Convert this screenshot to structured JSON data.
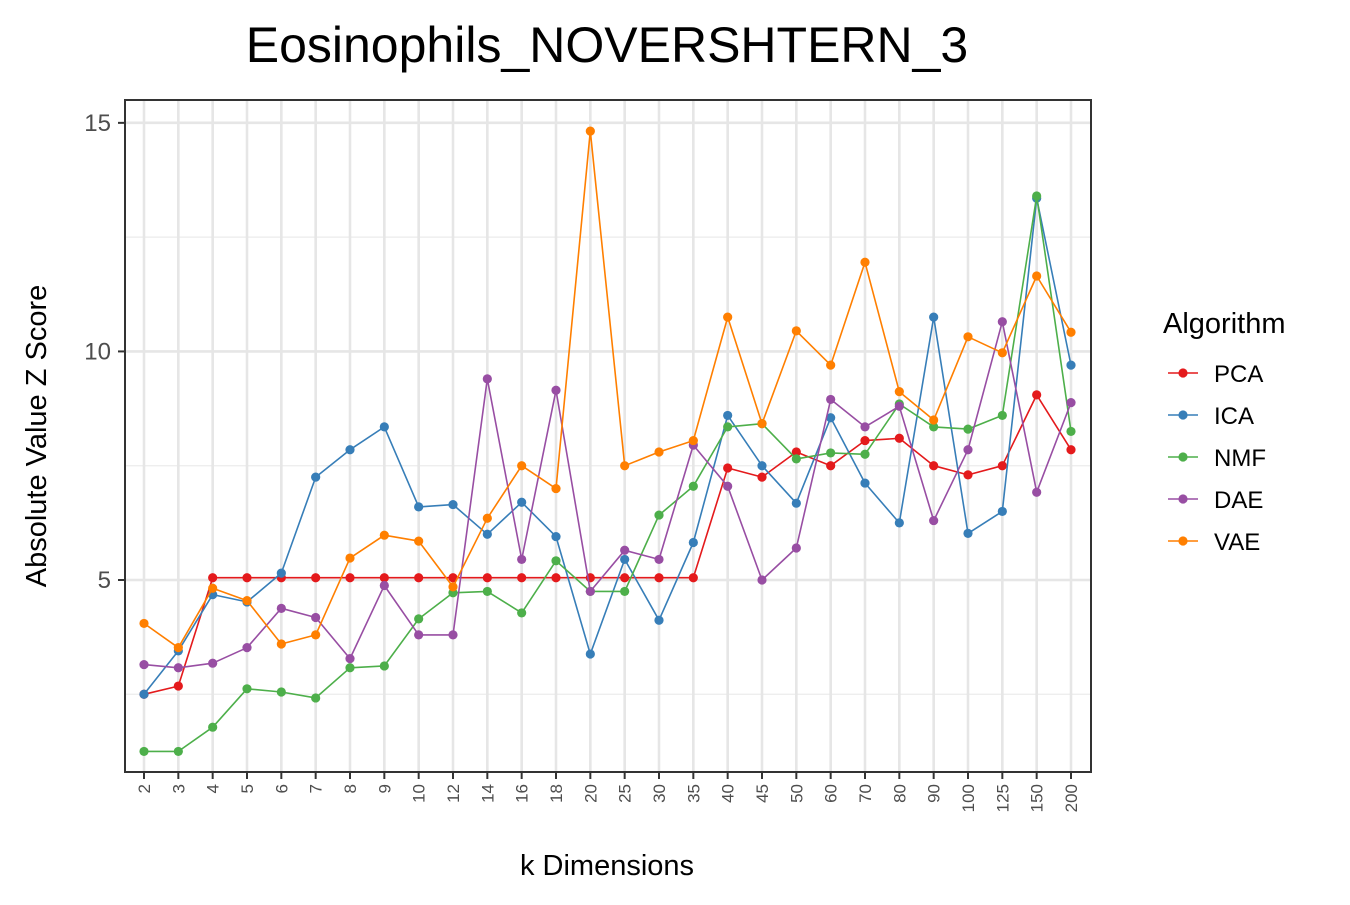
{
  "chart_data": {
    "type": "line",
    "title": "Eosinophils_NOVERSHTERN_3",
    "xlabel": "k Dimensions",
    "ylabel": "Absolute Value Z Score",
    "ylim": [
      0.8,
      15.5
    ],
    "y_ticks": [
      5,
      10,
      15
    ],
    "y_tick_labels": [
      "5",
      "10",
      "15"
    ],
    "grid": true,
    "categories": [
      "2",
      "3",
      "4",
      "5",
      "6",
      "7",
      "8",
      "9",
      "10",
      "12",
      "14",
      "16",
      "18",
      "20",
      "25",
      "30",
      "35",
      "40",
      "45",
      "50",
      "60",
      "70",
      "80",
      "90",
      "100",
      "125",
      "150",
      "200"
    ],
    "legend": {
      "title": "Algorithm",
      "position": "right"
    },
    "series": [
      {
        "name": "PCA",
        "color": "#E41A1C",
        "values": [
          2.5,
          2.68,
          5.05,
          5.05,
          5.05,
          5.05,
          5.05,
          5.05,
          5.05,
          5.05,
          5.05,
          5.05,
          5.05,
          5.05,
          5.05,
          5.05,
          5.05,
          7.45,
          7.25,
          7.8,
          7.5,
          8.05,
          8.1,
          7.5,
          7.3,
          7.5,
          9.05,
          7.85
        ]
      },
      {
        "name": "ICA",
        "color": "#377EB8",
        "values": [
          2.5,
          3.45,
          4.68,
          4.52,
          5.15,
          7.25,
          7.85,
          8.35,
          6.6,
          6.65,
          6.0,
          6.7,
          5.95,
          3.38,
          5.45,
          4.12,
          5.82,
          8.6,
          7.5,
          6.68,
          8.55,
          7.12,
          6.25,
          10.75,
          6.02,
          6.5,
          13.35,
          9.7
        ]
      },
      {
        "name": "NMF",
        "color": "#4DAF4A",
        "values": [
          1.25,
          1.25,
          1.78,
          2.62,
          2.55,
          2.42,
          3.08,
          3.12,
          4.15,
          4.72,
          4.75,
          4.28,
          5.42,
          4.75,
          4.75,
          6.42,
          7.05,
          8.35,
          8.42,
          7.65,
          7.78,
          7.75,
          8.85,
          8.35,
          8.3,
          8.6,
          13.4,
          8.25
        ]
      },
      {
        "name": "DAE",
        "color": "#984EA3",
        "values": [
          3.15,
          3.08,
          3.18,
          3.52,
          4.38,
          4.18,
          3.28,
          4.88,
          3.8,
          3.8,
          9.4,
          5.45,
          9.15,
          4.75,
          5.65,
          5.45,
          7.95,
          7.05,
          5.0,
          5.7,
          8.95,
          8.35,
          8.8,
          6.3,
          7.85,
          10.65,
          6.92,
          8.88
        ]
      },
      {
        "name": "VAE",
        "color": "#FF7F00",
        "values": [
          4.05,
          3.52,
          4.82,
          4.55,
          3.6,
          3.8,
          5.48,
          5.98,
          5.85,
          4.85,
          6.35,
          7.5,
          7.0,
          14.82,
          7.5,
          7.8,
          8.05,
          10.75,
          8.42,
          10.45,
          9.7,
          11.95,
          9.12,
          8.5,
          10.32,
          9.97,
          11.65,
          10.42
        ]
      }
    ]
  }
}
